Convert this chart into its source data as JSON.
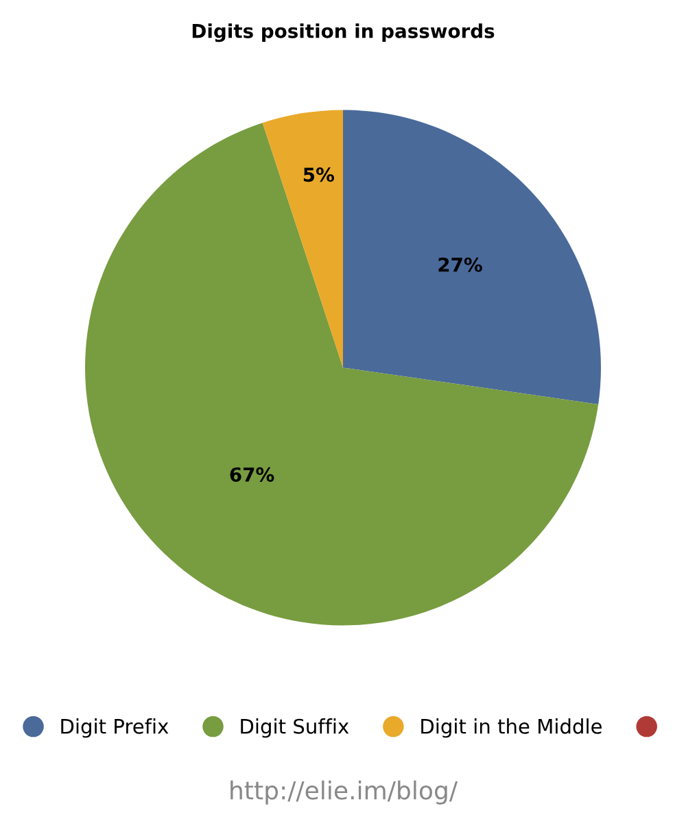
{
  "chart_data": {
    "type": "pie",
    "title": "Digits position in passwords",
    "categories": [
      "Digit Prefix",
      "Digit Suffix",
      "Digit in the Middle",
      null
    ],
    "values": [
      27,
      67,
      5,
      0
    ],
    "colors": [
      "#4a6a9a",
      "#789c40",
      "#e9a92a",
      "#b03a36"
    ],
    "value_labels": [
      "27%",
      "67%",
      "5%",
      null
    ],
    "legend": "bottom",
    "annotations": [
      "http://elie.im/blog/"
    ]
  }
}
